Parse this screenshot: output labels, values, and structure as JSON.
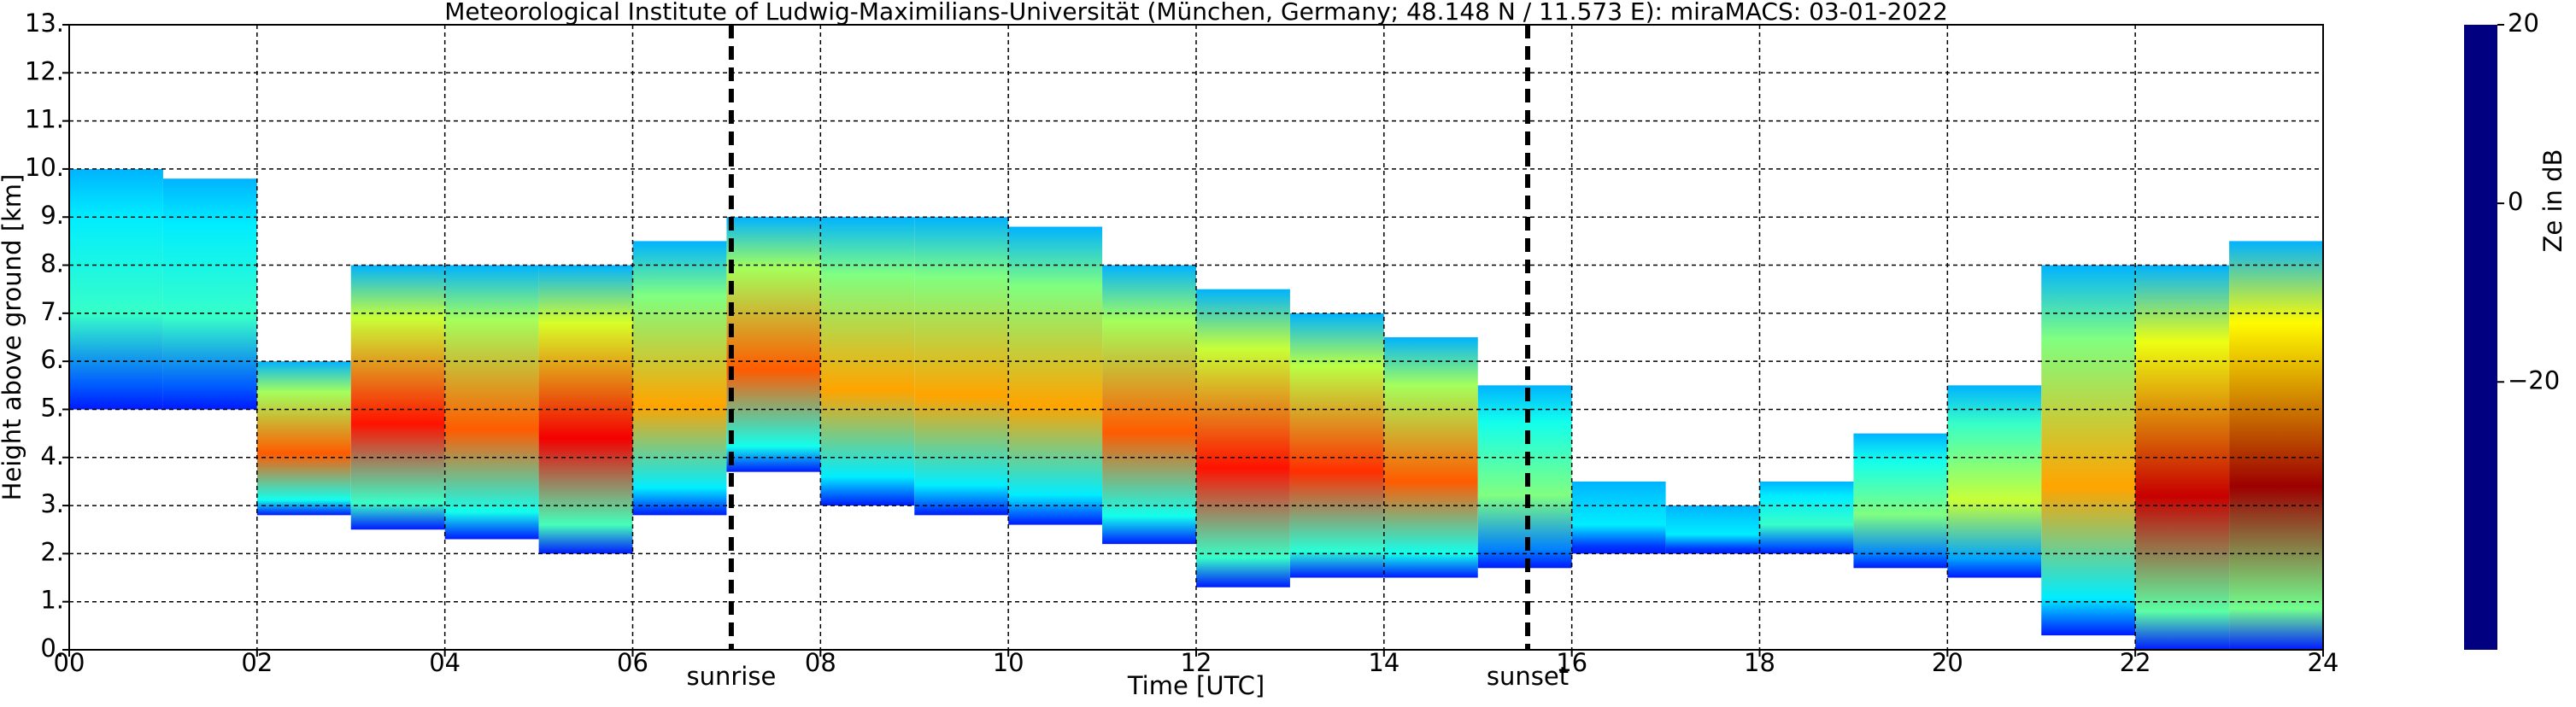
{
  "chart_data": {
    "type": "radar-heatmap",
    "title": "Meteorological Institute of Ludwig-Maximilians-Universität (München, Germany; 48.148 N / 11.573 E):    miraMACS: 03-01-2022",
    "x_label": "Time [UTC]",
    "y_label": "Height above ground [km]",
    "bins": [
      0,
      1,
      2,
      3,
      4,
      5,
      6,
      7,
      8,
      9,
      10,
      11,
      12,
      13,
      14,
      15,
      16,
      17,
      18,
      19,
      20,
      21,
      22,
      23,
      24
    ],
    "base": [
      5,
      5,
      2.8,
      2.5,
      2.3,
      2,
      2.8,
      3.7,
      3,
      2.8,
      2.6,
      2.2,
      1.3,
      1.5,
      1.5,
      1.7,
      2,
      2,
      2,
      1.7,
      1.5,
      0.3,
      0,
      0
    ],
    "top": [
      10,
      9.8,
      6,
      8,
      8,
      8,
      8.5,
      9,
      9,
      9,
      8.8,
      8,
      7.5,
      7,
      6.5,
      5.5,
      3.5,
      3,
      3.5,
      4.5,
      5.5,
      8,
      8,
      8.5
    ],
    "ze": [
      -20,
      -20,
      5,
      10,
      5,
      12,
      0,
      5,
      0,
      0,
      0,
      5,
      10,
      8,
      5,
      -15,
      -25,
      -25,
      -20,
      -15,
      -10,
      0,
      15,
      18
    ],
    "xlim": [
      0,
      24
    ],
    "ylim": [
      0,
      13
    ],
    "xticks": [
      {
        "value": 0,
        "label": "00"
      },
      {
        "value": 2,
        "label": "02"
      },
      {
        "value": 4,
        "label": "04"
      },
      {
        "value": 6,
        "label": "06"
      },
      {
        "value": 8,
        "label": "08"
      },
      10,
      12,
      14,
      16,
      18,
      20,
      22,
      24
    ],
    "yticks": [
      {
        "value": 0,
        "label": "0."
      },
      {
        "value": 1,
        "label": "1."
      },
      {
        "value": 2,
        "label": "2."
      },
      {
        "value": 3,
        "label": "3."
      },
      {
        "value": 4,
        "label": "4."
      },
      {
        "value": 5,
        "label": "5."
      },
      {
        "value": 6,
        "label": "6."
      },
      {
        "value": 7,
        "label": "7."
      },
      {
        "value": 8,
        "label": "8."
      },
      {
        "value": 9,
        "label": "9."
      },
      {
        "value": 10,
        "label": "10."
      },
      {
        "value": 11,
        "label": "11."
      },
      {
        "value": 12,
        "label": "12."
      },
      {
        "value": 13,
        "label": "13."
      }
    ],
    "grid": true,
    "events": [
      {
        "name": "sunrise",
        "x": 7.05
      },
      {
        "name": "sunset",
        "x": 15.53
      }
    ],
    "colorbar": {
      "label": "Ze in dB",
      "clim": [
        -50,
        20
      ],
      "ticks": [
        20,
        0,
        {
          "value": -20,
          "label": "−20"
        }
      ]
    }
  }
}
